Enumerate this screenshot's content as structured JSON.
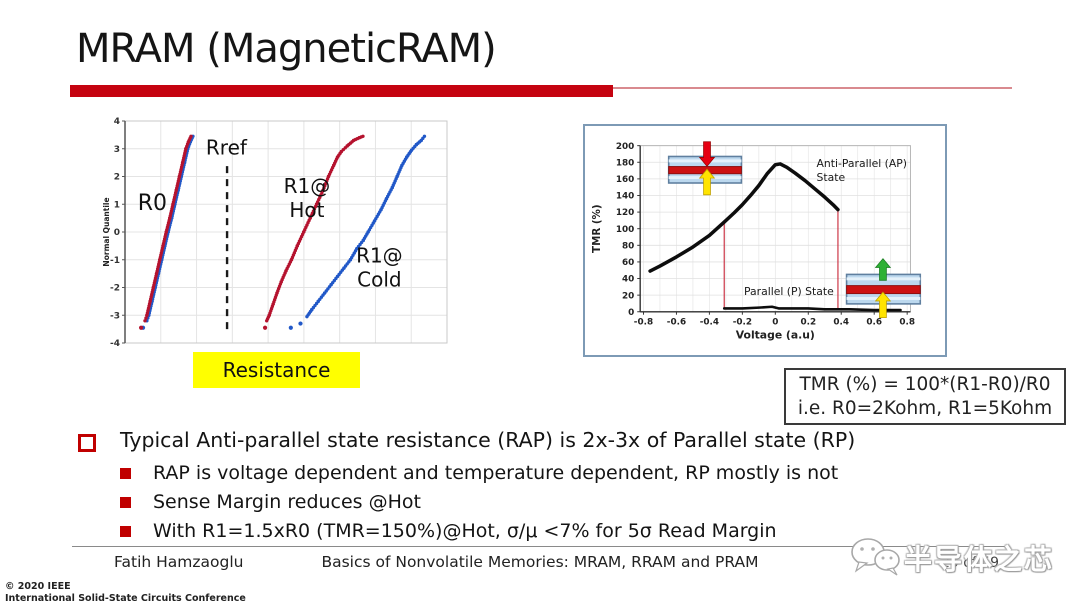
{
  "slide": {
    "title": "MRAM (MagneticRAM)",
    "resistance_label": "Resistance",
    "formula_box": {
      "line1": "TMR (%) = 100*(R1-R0)/R0",
      "line2": "i.e. R0=2Kohm, R1=5Kohm"
    },
    "bullets": {
      "main": "Typical Anti-parallel state resistance (RAP) is 2x-3x of Parallel state (RP)",
      "sub": [
        "RAP is voltage dependent and temperature dependent, RP mostly is not",
        "Sense Margin reduces @Hot",
        "With R1=1.5xR0 (TMR=150%)@Hot, σ/μ <7% for 5σ Read Margin"
      ]
    },
    "footer": {
      "author": "Fatih Hamzaoglu",
      "title": "Basics of Nonvolatile Memories: MRAM, RRAM and PRAM",
      "page": "20 of 59",
      "copyright1": "© 2020 IEEE",
      "copyright2": "International Solid-State Circuits Conference"
    },
    "watermark_text": "半导体之芯",
    "colors": {
      "accent_red": "#c50310",
      "highlight_yellow": "#ffff00",
      "curve_red": "#b5122e",
      "curve_blue": "#2158c8"
    }
  },
  "chart_data": [
    {
      "type": "scatter",
      "title": "",
      "xlabel": "Resistance",
      "ylabel": "Normal Quantile",
      "ylim": [
        -4,
        4
      ],
      "yticks": [
        4,
        3,
        2,
        1,
        0,
        -1,
        -2,
        -3,
        -4
      ],
      "xlim": [
        0,
        1
      ],
      "grid": true,
      "ref_line": {
        "label": "Rref",
        "x": 0.317,
        "y_from": -3.5,
        "y_to": 2.55,
        "style": "dashed"
      },
      "series": [
        {
          "name": "R0 (cold, blue)",
          "color": "#2158c8",
          "points": [
            [
              0.068,
              -3.2
            ],
            [
              0.074,
              -3.0
            ],
            [
              0.084,
              -2.5
            ],
            [
              0.094,
              -2.0
            ],
            [
              0.104,
              -1.5
            ],
            [
              0.114,
              -1.0
            ],
            [
              0.124,
              -0.5
            ],
            [
              0.134,
              0
            ],
            [
              0.145,
              0.5
            ],
            [
              0.155,
              1.0
            ],
            [
              0.165,
              1.5
            ],
            [
              0.175,
              2.0
            ],
            [
              0.185,
              2.5
            ],
            [
              0.195,
              3.0
            ],
            [
              0.203,
              3.25
            ],
            [
              0.211,
              3.45
            ]
          ],
          "outliers": [
            [
              0.056,
              -3.45
            ]
          ]
        },
        {
          "name": "R0",
          "color": "#b5122e",
          "points": [
            [
              0.062,
              -3.2
            ],
            [
              0.068,
              -3.0
            ],
            [
              0.078,
              -2.5
            ],
            [
              0.088,
              -2.0
            ],
            [
              0.098,
              -1.5
            ],
            [
              0.108,
              -1.0
            ],
            [
              0.118,
              -0.5
            ],
            [
              0.128,
              0
            ],
            [
              0.139,
              0.5
            ],
            [
              0.149,
              1.0
            ],
            [
              0.159,
              1.5
            ],
            [
              0.169,
              2.0
            ],
            [
              0.179,
              2.5
            ],
            [
              0.189,
              3.0
            ],
            [
              0.197,
              3.25
            ],
            [
              0.205,
              3.45
            ]
          ],
          "outliers": [
            [
              0.05,
              -3.45
            ]
          ]
        },
        {
          "name": "R1@Hot",
          "color": "#b5122e",
          "points": [
            [
              0.44,
              -3.2
            ],
            [
              0.448,
              -3.0
            ],
            [
              0.46,
              -2.6
            ],
            [
              0.472,
              -2.2
            ],
            [
              0.485,
              -1.8
            ],
            [
              0.5,
              -1.4
            ],
            [
              0.517,
              -1.0
            ],
            [
              0.535,
              -0.5
            ],
            [
              0.555,
              0
            ],
            [
              0.575,
              0.5
            ],
            [
              0.595,
              1.0
            ],
            [
              0.615,
              1.5
            ],
            [
              0.632,
              2.0
            ],
            [
              0.648,
              2.4
            ],
            [
              0.66,
              2.7
            ],
            [
              0.672,
              2.9
            ],
            [
              0.69,
              3.1
            ],
            [
              0.71,
              3.3
            ],
            [
              0.728,
              3.4
            ],
            [
              0.739,
              3.45
            ]
          ],
          "outliers": [
            [
              0.435,
              -3.45
            ]
          ]
        },
        {
          "name": "R1@Cold",
          "color": "#2158c8",
          "points": [
            [
              0.565,
              -3.05
            ],
            [
              0.58,
              -2.8
            ],
            [
              0.6,
              -2.5
            ],
            [
              0.62,
              -2.2
            ],
            [
              0.64,
              -1.9
            ],
            [
              0.66,
              -1.6
            ],
            [
              0.68,
              -1.3
            ],
            [
              0.7,
              -1.0
            ],
            [
              0.72,
              -0.6
            ],
            [
              0.74,
              -0.3
            ],
            [
              0.755,
              0
            ],
            [
              0.775,
              0.4
            ],
            [
              0.795,
              0.8
            ],
            [
              0.812,
              1.2
            ],
            [
              0.83,
              1.6
            ],
            [
              0.845,
              2.0
            ],
            [
              0.86,
              2.4
            ],
            [
              0.875,
              2.7
            ],
            [
              0.89,
              2.95
            ],
            [
              0.905,
              3.15
            ],
            [
              0.92,
              3.3
            ],
            [
              0.93,
              3.45
            ]
          ],
          "outliers": [
            [
              0.515,
              -3.45
            ],
            [
              0.545,
              -3.3
            ]
          ]
        }
      ],
      "annotations": [
        {
          "lines": [
            "R0"
          ],
          "x": 0.085,
          "y": 0.8,
          "size": 22
        },
        {
          "lines": [
            "Rref"
          ],
          "x": 0.315,
          "y": 2.8,
          "size": 20
        },
        {
          "lines": [
            "R1@",
            "Hot"
          ],
          "x": 0.565,
          "y": 1.4,
          "size": 20
        },
        {
          "lines": [
            "R1@",
            "Cold"
          ],
          "x": 0.79,
          "y": -1.1,
          "size": 20
        }
      ]
    },
    {
      "type": "line",
      "title": "",
      "xlabel": "Voltage (a.u)",
      "ylabel": "TMR (%)",
      "xlim": [
        -0.82,
        0.82
      ],
      "ylim": [
        0,
        200
      ],
      "yticks": [
        0,
        20,
        40,
        60,
        80,
        100,
        120,
        140,
        160,
        180,
        200
      ],
      "xticks": [
        -0.8,
        -0.6,
        -0.4,
        -0.2,
        0,
        0.2,
        0.4,
        0.6,
        0.8
      ],
      "xtick_labels": [
        "-0.8",
        "-0.6",
        "-0.4",
        "-0.2",
        "0",
        "0.2",
        "0.4",
        "0.6",
        "0.8"
      ],
      "grid": true,
      "series": [
        {
          "name": "Anti-Parallel (AP) State",
          "color": "#0d0d0d",
          "width": 3.6,
          "points": [
            [
              -0.76,
              49
            ],
            [
              -0.7,
              55
            ],
            [
              -0.6,
              66
            ],
            [
              -0.5,
              78
            ],
            [
              -0.4,
              92
            ],
            [
              -0.31,
              108
            ],
            [
              -0.25,
              119
            ],
            [
              -0.2,
              129
            ],
            [
              -0.15,
              140
            ],
            [
              -0.1,
              152
            ],
            [
              -0.05,
              166
            ],
            [
              0,
              177
            ],
            [
              0.03,
              178
            ],
            [
              0.07,
              174
            ],
            [
              0.12,
              167
            ],
            [
              0.18,
              158
            ],
            [
              0.24,
              148
            ],
            [
              0.3,
              138
            ],
            [
              0.35,
              129
            ],
            [
              0.38,
              123
            ]
          ]
        },
        {
          "name": "Parallel (P) State",
          "color": "#0d0d0d",
          "width": 2.6,
          "points": [
            [
              -0.31,
              4
            ],
            [
              -0.2,
              4
            ],
            [
              -0.1,
              5
            ],
            [
              -0.02,
              6
            ],
            [
              0.02,
              4
            ],
            [
              0.1,
              4
            ],
            [
              0.2,
              4
            ],
            [
              0.3,
              3
            ],
            [
              0.45,
              3
            ],
            [
              0.6,
              2
            ],
            [
              0.76,
              2
            ]
          ]
        }
      ],
      "switch_lines": [
        {
          "x": -0.31,
          "y_from": 4,
          "y_to": 108,
          "color": "#cc3344"
        },
        {
          "x": 0.38,
          "y_from": 2,
          "y_to": 123,
          "color": "#cc3344"
        }
      ],
      "annotations": [
        {
          "lines": [
            "Anti-Parallel (AP)",
            "State"
          ],
          "x": 0.25,
          "y": 174,
          "size": 11
        },
        {
          "lines": [
            "Parallel (P) State"
          ],
          "x": -0.19,
          "y": 20,
          "size": 11
        }
      ],
      "mtj_icons": [
        {
          "state": "anti-parallel",
          "arrows": [
            "red-down",
            "yellow-up"
          ]
        },
        {
          "state": "parallel",
          "arrows": [
            "green-up",
            "yellow-up"
          ]
        }
      ]
    }
  ]
}
